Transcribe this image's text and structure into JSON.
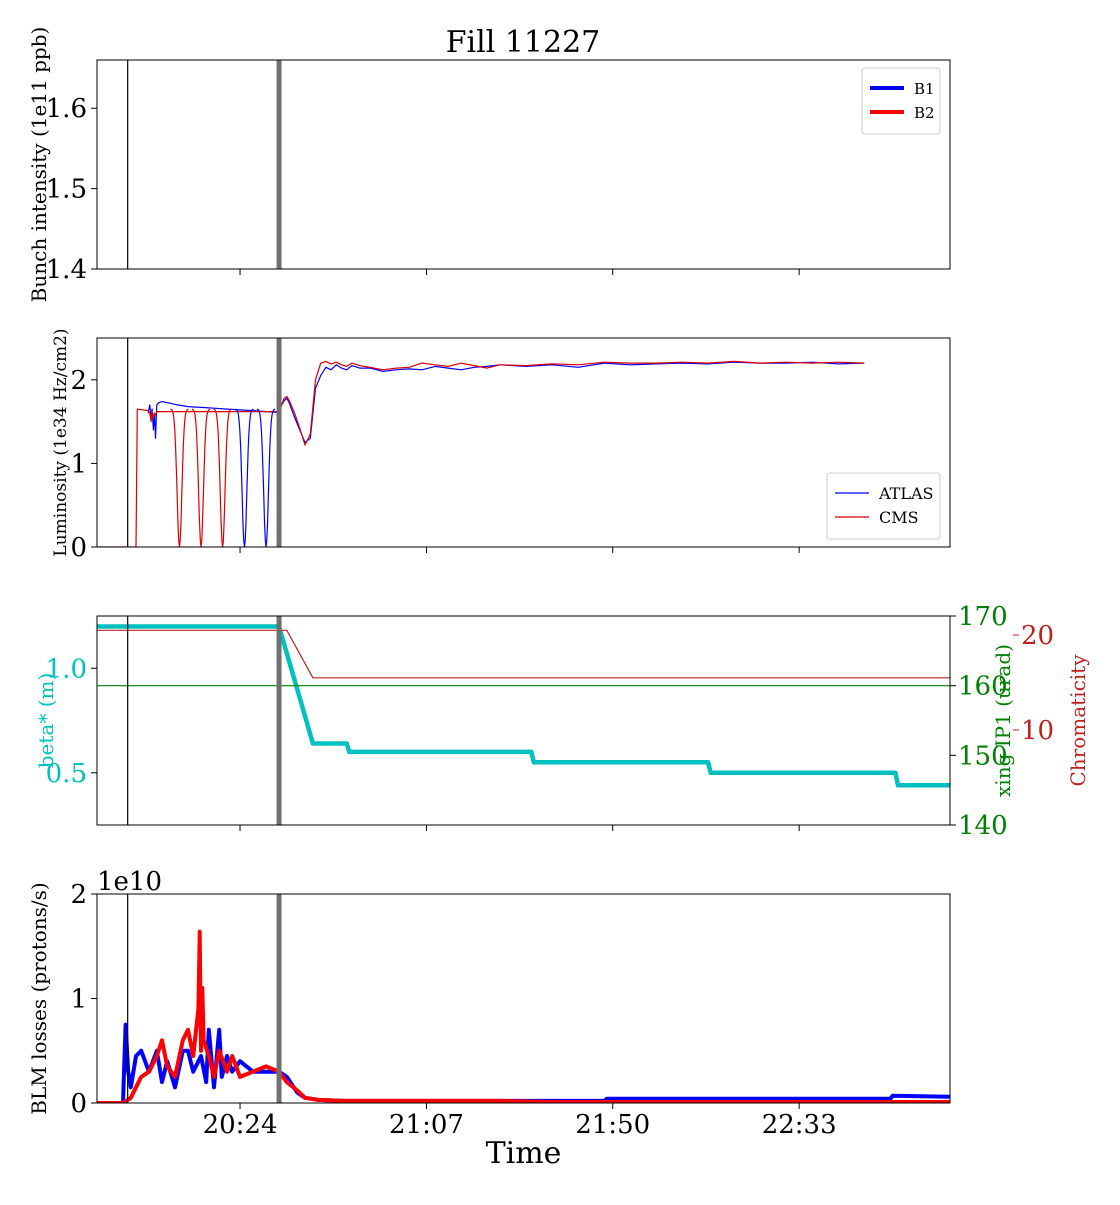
{
  "title": "Fill 11227",
  "chart_data": [
    {
      "type": "line",
      "ylabel": "Bunch intensity (1e11 ppb)",
      "ylim": [
        1.4,
        1.66
      ],
      "yticks": [
        1.4,
        1.5,
        1.6
      ],
      "yticklabels": [
        "1.4",
        "1.5",
        "1.6"
      ],
      "legend": {
        "placement": "top-right",
        "entries": [
          {
            "name": "B1",
            "color": "#0000ff"
          },
          {
            "name": "B2",
            "color": "#ff0000"
          }
        ]
      },
      "series": []
    },
    {
      "type": "line",
      "ylabel": "Luminosity (1e34 Hz/cm2)",
      "ylim": [
        0,
        2.5
      ],
      "yticks": [
        0,
        1,
        2
      ],
      "yticklabels": [
        "0",
        "1",
        "2"
      ],
      "legend": {
        "placement": "bottom-right",
        "entries": [
          {
            "name": "ATLAS",
            "color": "#0000ff"
          },
          {
            "name": "CMS",
            "color": "#dd0000"
          }
        ]
      },
      "series": [
        {
          "name": "ATLAS",
          "color": "#0000ff",
          "x": [
            20.047,
            20.053,
            20.058,
            20.062,
            20.067,
            20.071,
            20.075,
            20.08,
            20.085,
            20.091,
            20.1,
            20.13,
            20.16,
            20.2,
            20.25,
            20.3,
            20.35,
            20.4,
            20.45,
            20.5,
            20.55,
            20.56,
            20.57,
            20.58,
            20.59,
            20.61,
            20.63,
            20.65,
            20.67,
            20.69,
            20.71,
            20.73,
            20.75,
            20.77,
            20.79,
            20.81,
            20.83,
            20.86,
            20.9,
            20.95,
            21.0,
            21.05,
            21.1,
            21.15,
            21.2,
            21.25,
            21.3,
            21.35,
            21.4,
            21.5,
            21.6,
            21.7,
            21.8,
            21.9,
            22.0,
            22.1,
            22.2,
            22.3,
            22.4,
            22.5,
            22.6,
            22.7,
            22.8
          ],
          "y": [
            1.6,
            1.7,
            1.55,
            1.65,
            1.4,
            1.6,
            1.3,
            1.7,
            1.72,
            1.73,
            1.74,
            1.72,
            1.7,
            1.68,
            1.67,
            1.66,
            1.65,
            1.64,
            1.63,
            1.62,
            1.61,
            1.7,
            1.75,
            1.78,
            1.72,
            1.55,
            1.4,
            1.25,
            1.3,
            1.9,
            2.05,
            2.15,
            2.12,
            2.18,
            2.14,
            2.12,
            2.17,
            2.14,
            2.14,
            2.1,
            2.12,
            2.13,
            2.12,
            2.16,
            2.14,
            2.12,
            2.15,
            2.16,
            2.18,
            2.16,
            2.18,
            2.15,
            2.2,
            2.18,
            2.19,
            2.2,
            2.19,
            2.21,
            2.2,
            2.2,
            2.21,
            2.19,
            2.2
          ]
        },
        {
          "name": "CMS",
          "color": "#dd0000",
          "x": [
            19.85,
            20.0,
            20.005,
            20.047,
            20.053,
            20.058,
            20.062,
            20.067,
            20.071,
            20.075,
            20.08,
            20.085,
            20.091,
            20.1,
            20.13,
            20.16,
            20.2,
            20.25,
            20.3,
            20.35,
            20.4,
            20.45,
            20.5,
            20.55,
            20.56,
            20.57,
            20.58,
            20.59,
            20.61,
            20.63,
            20.65,
            20.67,
            20.69,
            20.71,
            20.73,
            20.75,
            20.77,
            20.79,
            20.81,
            20.83,
            20.86,
            20.9,
            20.95,
            21.0,
            21.05,
            21.1,
            21.15,
            21.2,
            21.25,
            21.3,
            21.35,
            21.4,
            21.5,
            21.6,
            21.7,
            21.8,
            21.9,
            22.0,
            22.1,
            22.2,
            22.3,
            22.4,
            22.5,
            22.6,
            22.7,
            22.8
          ],
          "y": [
            0,
            0,
            1.65,
            1.63,
            1.6,
            1.5,
            1.62,
            1.55,
            1.6,
            1.58,
            1.62,
            1.62,
            1.62,
            1.62,
            1.62,
            1.62,
            1.62,
            1.62,
            1.62,
            1.62,
            1.62,
            1.62,
            1.62,
            1.62,
            1.7,
            1.78,
            1.8,
            1.75,
            1.6,
            1.42,
            1.22,
            1.35,
            2.0,
            2.2,
            2.22,
            2.19,
            2.21,
            2.18,
            2.16,
            2.2,
            2.17,
            2.15,
            2.12,
            2.14,
            2.15,
            2.2,
            2.18,
            2.16,
            2.2,
            2.17,
            2.14,
            2.18,
            2.17,
            2.19,
            2.18,
            2.21,
            2.2,
            2.2,
            2.21,
            2.2,
            2.22,
            2.2,
            2.21,
            2.2,
            2.21,
            2.2
          ]
        }
      ],
      "dips": [
        {
          "series": "CMS",
          "color": "#dd0000",
          "centers": [
            20.167,
            20.25,
            20.333
          ],
          "floor": 0.0,
          "top": 1.65
        },
        {
          "series": "ATLAS",
          "color": "#0000ff",
          "centers": [
            20.417,
            20.5
          ],
          "floor": 0.0,
          "top": 1.65
        }
      ]
    },
    {
      "type": "line",
      "ylabel": "beta* (m)",
      "ylabel_color": "#00c0c0",
      "ylim": [
        0.25,
        1.25
      ],
      "yticks": [
        0.5,
        1.0
      ],
      "yticklabels": [
        "0.5",
        "1.0"
      ],
      "ylabel2": "xing IP1 (urad)",
      "ylabel2_color": "#008000",
      "ylim2": [
        140,
        170
      ],
      "yticks2": [
        140,
        150,
        160,
        170
      ],
      "yticklabels2": [
        "140",
        "150",
        "160",
        "170"
      ],
      "ylabel3": "Chromaticity",
      "ylabel3_color": "#c02020",
      "ylim3": [
        0,
        22
      ],
      "yticks3": [
        10,
        20
      ],
      "yticklabels3": [
        "10",
        "20"
      ],
      "series": [
        {
          "name": "beta*",
          "color": "#00c0c0",
          "axis": "left",
          "x": [
            19.85,
            20.55,
            20.62,
            20.68,
            20.7,
            20.81,
            20.82,
            21.52,
            21.53,
            22.2,
            22.21,
            22.92,
            22.93,
            23.13
          ],
          "y": [
            1.2,
            1.2,
            0.9,
            0.64,
            0.64,
            0.64,
            0.6,
            0.6,
            0.55,
            0.55,
            0.5,
            0.5,
            0.44,
            0.44
          ]
        },
        {
          "name": "xing IP1",
          "color": "#008000",
          "axis": "right",
          "x": [
            19.85,
            23.13
          ],
          "y": [
            160,
            160
          ]
        },
        {
          "name": "Chromaticity",
          "color": "#c02020",
          "axis": "far-right",
          "x": [
            19.85,
            20.58,
            20.68,
            23.13
          ],
          "y": [
            20.5,
            20.5,
            15.5,
            15.5
          ]
        }
      ]
    },
    {
      "type": "line",
      "ylabel": "BLM losses (protons/s)",
      "offset_label": "1e10",
      "xlabel": "Time",
      "ylim": [
        0,
        2
      ],
      "yticks": [
        0,
        1,
        2
      ],
      "yticklabels": [
        "0",
        "1",
        "2"
      ],
      "xticks": [
        20.4,
        21.117,
        21.833,
        22.55
      ],
      "xticklabels": [
        "20:24",
        "21:07",
        "21:50",
        "22:33"
      ],
      "series": [
        {
          "name": "B1",
          "color": "#0000ff",
          "x": [
            19.85,
            19.9,
            19.95,
            19.96,
            19.97,
            19.98,
            20.0,
            20.02,
            20.05,
            20.08,
            20.1,
            20.12,
            20.15,
            20.18,
            20.2,
            20.22,
            20.25,
            20.27,
            20.28,
            20.3,
            20.32,
            20.33,
            20.35,
            20.37,
            20.4,
            20.45,
            20.5,
            20.55,
            20.58,
            20.62,
            20.65,
            20.7,
            20.8,
            20.9,
            21.0,
            21.2,
            21.4,
            21.6,
            21.8,
            21.81,
            22.0,
            22.2,
            22.4,
            22.5,
            22.6,
            22.9,
            22.91,
            23.13
          ],
          "y": [
            0,
            0,
            0,
            0.75,
            0.3,
            0.15,
            0.45,
            0.5,
            0.3,
            0.5,
            0.2,
            0.4,
            0.15,
            0.5,
            0.5,
            0.3,
            0.45,
            0.2,
            0.7,
            0.15,
            0.7,
            0.25,
            0.45,
            0.3,
            0.4,
            0.3,
            0.3,
            0.3,
            0.25,
            0.1,
            0.05,
            0.03,
            0.02,
            0.02,
            0.02,
            0.02,
            0.02,
            0.02,
            0.02,
            0.04,
            0.04,
            0.04,
            0.04,
            0.04,
            0.04,
            0.04,
            0.07,
            0.06
          ]
        },
        {
          "name": "B2",
          "color": "#ff0000",
          "x": [
            19.85,
            19.9,
            19.95,
            19.98,
            20.0,
            20.02,
            20.05,
            20.08,
            20.1,
            20.12,
            20.15,
            20.18,
            20.2,
            20.22,
            20.24,
            20.245,
            20.25,
            20.255,
            20.26,
            20.28,
            20.3,
            20.32,
            20.35,
            20.37,
            20.4,
            20.45,
            20.5,
            20.55,
            20.58,
            20.62,
            20.65,
            20.7,
            20.8,
            20.9,
            21.0,
            21.2,
            21.4,
            21.6,
            21.8,
            22.0,
            22.2,
            22.4,
            22.6,
            22.9,
            23.13
          ],
          "y": [
            0,
            0,
            0,
            0.05,
            0.15,
            0.25,
            0.3,
            0.45,
            0.6,
            0.35,
            0.25,
            0.6,
            0.7,
            0.45,
            0.9,
            1.64,
            0.5,
            1.1,
            0.6,
            0.45,
            0.25,
            0.5,
            0.3,
            0.45,
            0.25,
            0.3,
            0.35,
            0.3,
            0.2,
            0.12,
            0.05,
            0.03,
            0.02,
            0.02,
            0.02,
            0.02,
            0.02,
            0.01,
            0.01,
            0.01,
            0.01,
            0.01,
            0.01,
            0.01,
            0.01
          ]
        }
      ]
    }
  ],
  "x_axis": {
    "xlim": [
      19.85,
      23.13
    ],
    "markers": [
      {
        "x": 19.968,
        "color": "#000000",
        "style": "thin"
      },
      {
        "x": 20.55,
        "color": "#707070",
        "style": "thick"
      }
    ]
  }
}
